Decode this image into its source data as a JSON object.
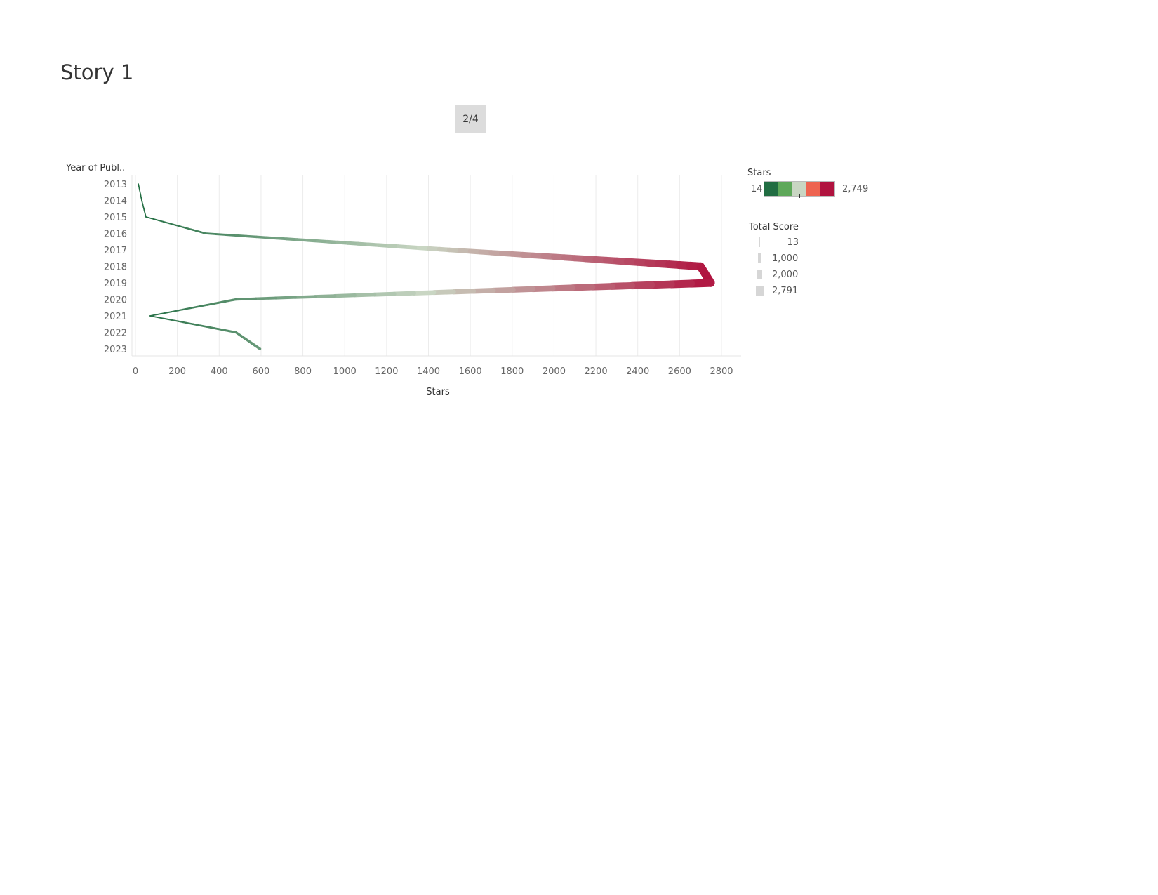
{
  "story": {
    "title": "Story 1",
    "page_indicator": "2/4"
  },
  "colors": {
    "low": "#216d42",
    "mid": "#c9d6c3",
    "high": "#b0133f"
  },
  "legends": {
    "color": {
      "title": "Stars",
      "min_label": "14",
      "max_label": "2,749",
      "swatches": [
        "#216d42",
        "#5ea85a",
        "#c9d6c3",
        "#ee6350",
        "#b0133f"
      ]
    },
    "size": {
      "title": "Total Score",
      "entries": [
        {
          "label": "13",
          "value": 13
        },
        {
          "label": "1,000",
          "value": 1000
        },
        {
          "label": "2,000",
          "value": 2000
        },
        {
          "label": "2,791",
          "value": 2791
        }
      ]
    }
  },
  "chart_data": {
    "type": "line",
    "xlabel": "Stars",
    "ylabel": "Year of Publ..",
    "xlim": [
      0,
      2800
    ],
    "x_ticks": [
      "0",
      "200",
      "400",
      "600",
      "800",
      "1000",
      "1200",
      "1400",
      "1600",
      "1800",
      "2000",
      "2200",
      "2400",
      "2600",
      "2800"
    ],
    "y_ticks": [
      "2013",
      "2014",
      "2015",
      "2016",
      "2017",
      "2018",
      "2019",
      "2020",
      "2021",
      "2022",
      "2023"
    ],
    "grid": true,
    "series": [
      {
        "points": [
          {
            "year": "2013",
            "stars": 14,
            "total_score": 13
          },
          {
            "year": "2014",
            "stars": 30,
            "total_score": 30
          },
          {
            "year": "2015",
            "stars": 50,
            "total_score": 50
          },
          {
            "year": "2016",
            "stars": 335,
            "total_score": 340
          },
          {
            "year": "2017",
            "stars": 1500,
            "total_score": 1400
          },
          {
            "year": "2018",
            "stars": 2700,
            "total_score": 2791
          },
          {
            "year": "2019",
            "stars": 2749,
            "total_score": 2791
          },
          {
            "year": "2020",
            "stars": 480,
            "total_score": 500
          },
          {
            "year": "2021",
            "stars": 70,
            "total_score": 60
          },
          {
            "year": "2022",
            "stars": 480,
            "total_score": 480
          },
          {
            "year": "2023",
            "stars": 595,
            "total_score": 600
          }
        ]
      }
    ]
  }
}
